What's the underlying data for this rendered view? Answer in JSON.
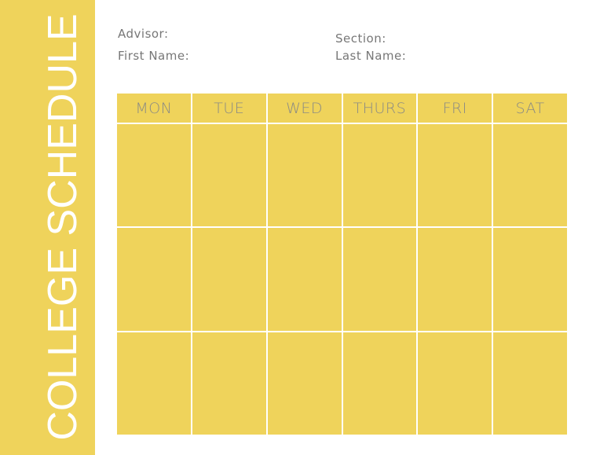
{
  "title": "COLLEGE SCHEDULE",
  "fields": {
    "advisor": "Advisor:",
    "first_name": "First Name:",
    "section": "Section:",
    "last_name": "Last Name:"
  },
  "days": [
    "MON",
    "TUE",
    "WED",
    "THURS",
    "FRI",
    "SAT"
  ],
  "colors": {
    "accent": "#efd35b",
    "text": "#777777"
  }
}
